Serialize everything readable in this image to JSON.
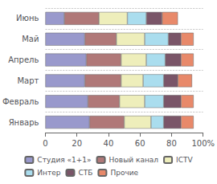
{
  "chart_data": {
    "type": "bar",
    "orientation": "horizontal",
    "stacked": true,
    "categories": [
      "Январь",
      "Февраль",
      "Март",
      "Апрель",
      "Май",
      "Июнь"
    ],
    "series": [
      {
        "name": "Студия «1+1»",
        "color": "#9999cc",
        "values": [
          28,
          27,
          25,
          26,
          25,
          12
        ]
      },
      {
        "name": "Новый канал",
        "color": "#b07878",
        "values": [
          22,
          20,
          23,
          22,
          20,
          22
        ]
      },
      {
        "name": "ICTV",
        "color": "#eeeebb",
        "values": [
          17,
          16,
          14,
          16,
          18,
          18
        ]
      },
      {
        "name": "Интер",
        "color": "#aaddee",
        "values": [
          8,
          12,
          13,
          12,
          15,
          12
        ]
      },
      {
        "name": "СТБ",
        "color": "#7a5568",
        "values": [
          11,
          11,
          9,
          10,
          8,
          10
        ]
      },
      {
        "name": "Прочие",
        "color": "#e8896a",
        "values": [
          8,
          8,
          9,
          8,
          8,
          10
        ]
      }
    ],
    "xlim": [
      0,
      100
    ],
    "xticks": [
      0,
      20,
      40,
      60,
      80,
      {
        "value": 100,
        "label": "100%"
      }
    ],
    "grid": true,
    "legend": "bottom"
  }
}
